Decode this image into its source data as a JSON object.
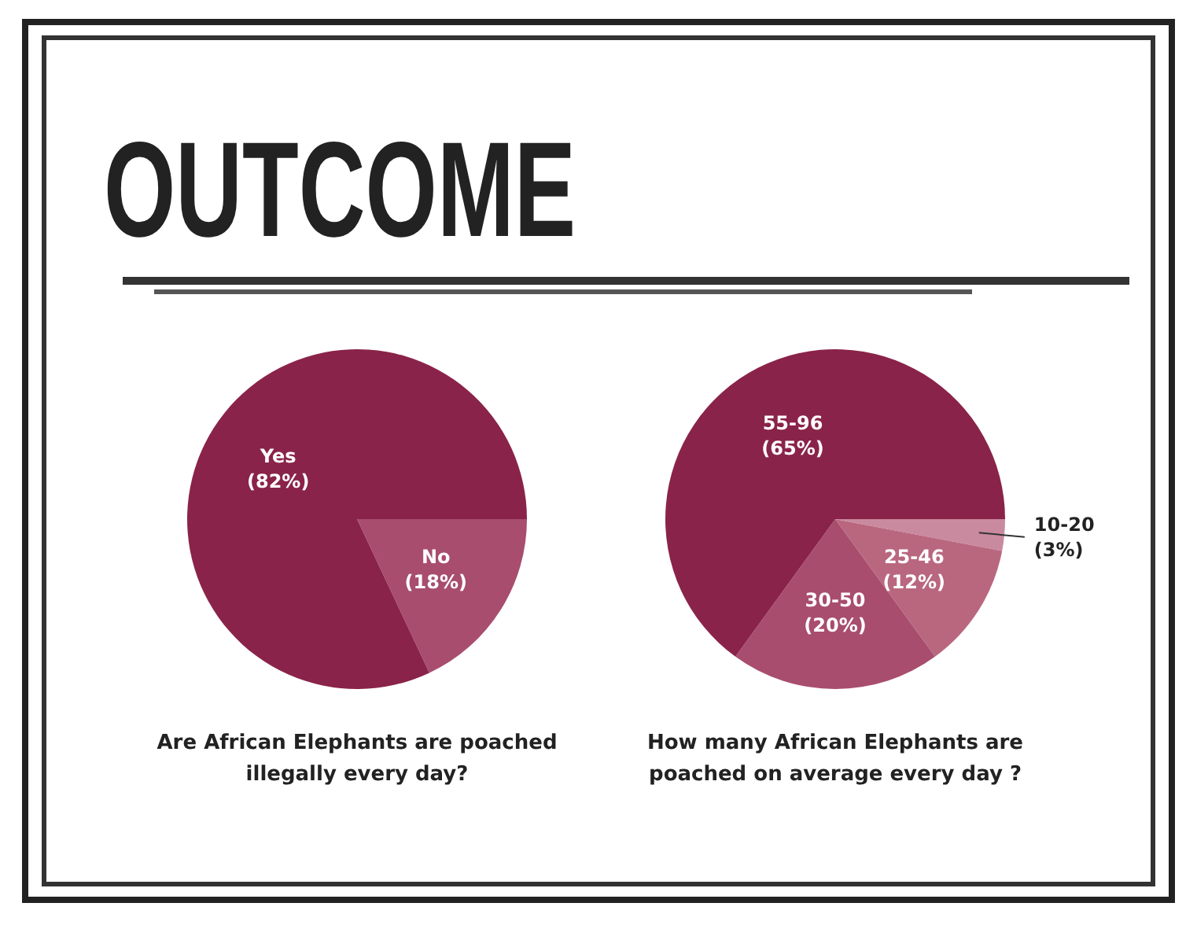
{
  "chart_data": [
    {
      "type": "other",
      "title": "OUTCOME"
    },
    {
      "type": "pie",
      "title": "Are African Elephants are poached illegally every day?",
      "categories": [
        "No",
        "Yes"
      ],
      "values": [
        18,
        82
      ],
      "colors": [
        "#a84d6e",
        "#8a2349"
      ],
      "value_labels": [
        "(18%)",
        "(82%)"
      ]
    },
    {
      "type": "pie",
      "title": "How many African Elephants are poached on average every day ?",
      "categories": [
        "10-20",
        "25-46",
        "30-50",
        "55-96"
      ],
      "values": [
        3,
        12,
        20,
        65
      ],
      "colors": [
        "#c98a9f",
        "#b9677f",
        "#a84d6e",
        "#8a2349"
      ],
      "value_labels": [
        "(3%)",
        "(12%)",
        "(20%)",
        "(65%)"
      ]
    }
  ]
}
